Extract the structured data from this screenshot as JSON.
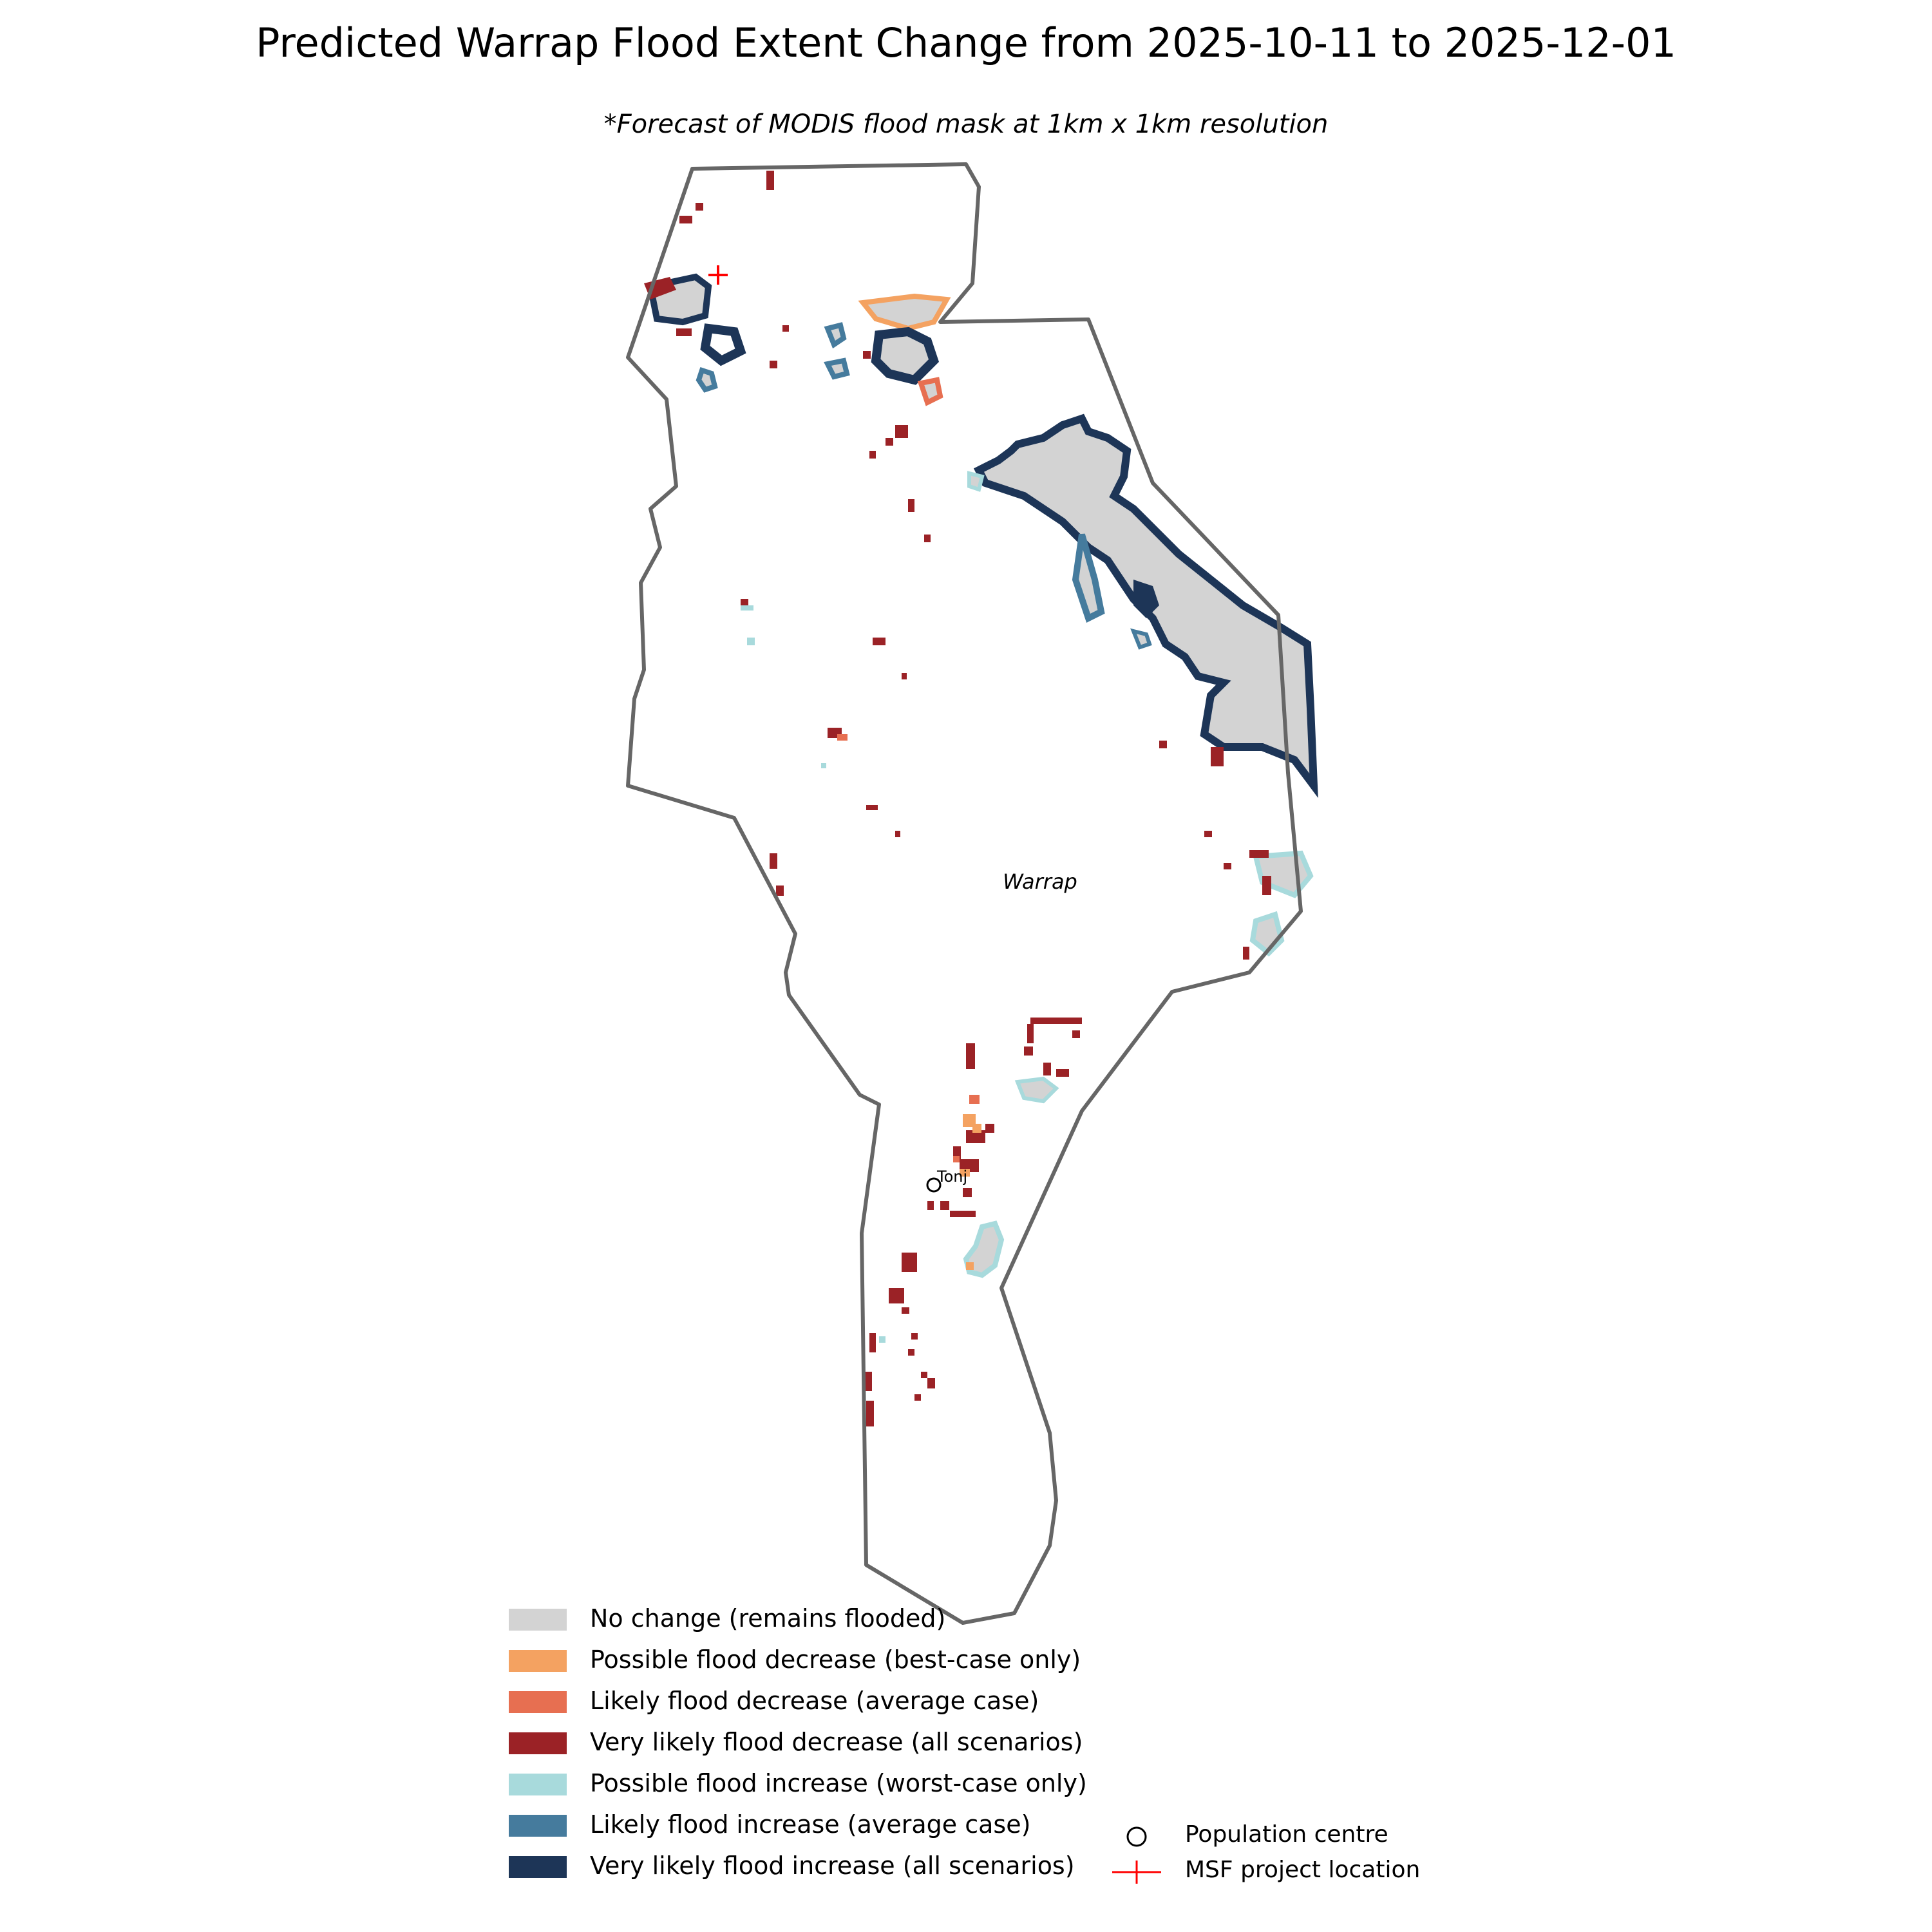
{
  "title": "Predicted Warrap Flood Extent Change from 2025-10-11 to 2025-12-01",
  "subtitle": "*Forecast of MODIS flood mask at 1km x 1km resolution",
  "region_label": "Warrap",
  "town_label": "Tonj",
  "colors": {
    "no_change": "#d3d3d3",
    "possible_decrease": "#f4a261",
    "likely_decrease": "#e76f51",
    "very_likely_decrease": "#9b2226",
    "possible_increase": "#a8dadc",
    "likely_increase": "#457b9d",
    "very_likely_increase": "#1d3557",
    "boundary": "#666666",
    "msf_marker": "#ff0000"
  },
  "legend": {
    "items": [
      {
        "label": "No change (remains flooded)",
        "color": "#d3d3d3"
      },
      {
        "label": "Possible flood decrease (best-case only)",
        "color": "#f4a261"
      },
      {
        "label": "Likely flood decrease (average case)",
        "color": "#e76f51"
      },
      {
        "label": "Very likely flood decrease (all scenarios)",
        "color": "#9b2226"
      },
      {
        "label": "Possible flood increase (worst-case only)",
        "color": "#a8dadc"
      },
      {
        "label": "Likely flood increase (average case)",
        "color": "#457b9d"
      },
      {
        "label": "Very likely flood increase (all scenarios)",
        "color": "#1d3557"
      }
    ],
    "markers": [
      {
        "label": "Population centre",
        "symbol": "circle-icon"
      },
      {
        "label": "MSF project location",
        "symbol": "plus-icon"
      }
    ]
  }
}
